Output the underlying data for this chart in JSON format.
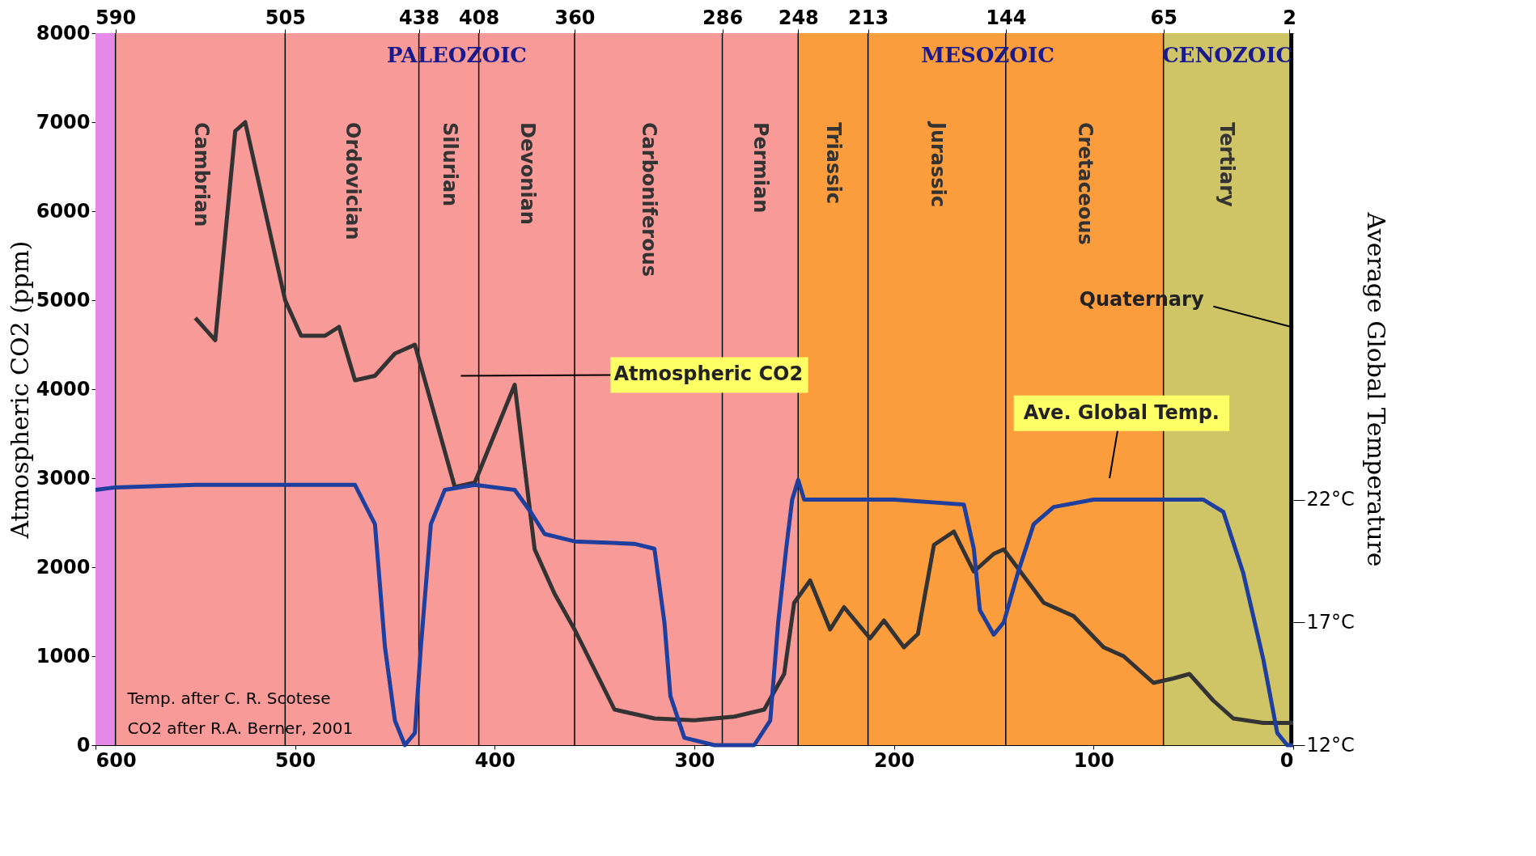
{
  "chart_data": {
    "type": "line",
    "ylabel": "Atmospheric CO2 (ppm)",
    "y2label": "Average Global Temperature",
    "xlim": [
      600,
      0
    ],
    "xticks": [
      600,
      500,
      400,
      300,
      200,
      100,
      0
    ],
    "x2lim": [
      600,
      0
    ],
    "x2ticks": [
      590,
      505,
      438,
      408,
      360,
      286,
      248,
      213,
      144,
      65,
      2
    ],
    "ylim": [
      0,
      8000
    ],
    "yticks": [
      0,
      1000,
      2000,
      3000,
      4000,
      5000,
      6000,
      7000,
      8000
    ],
    "ref_lines": [
      {
        "axis": "x",
        "value": 590
      },
      {
        "axis": "x",
        "value": 505
      },
      {
        "axis": "x",
        "value": 438
      },
      {
        "axis": "x",
        "value": 408
      },
      {
        "axis": "x",
        "value": 360
      },
      {
        "axis": "x",
        "value": 286
      },
      {
        "axis": "x",
        "value": 248
      },
      {
        "axis": "x",
        "value": 213
      },
      {
        "axis": "x",
        "value": 144
      },
      {
        "axis": "x",
        "value": 65
      }
    ],
    "y2lim": [
      12,
      41
    ],
    "y2ticks": [
      {
        "value": 12,
        "label": "12°C"
      },
      {
        "value": 17,
        "label": "17°C"
      },
      {
        "value": 22,
        "label": "22°C"
      }
    ],
    "marker": "none",
    "line_style": "solid",
    "bands": [
      {
        "axis": "x",
        "from": 600,
        "to": 590,
        "label": null,
        "color": "#e58ae8"
      },
      {
        "axis": "x",
        "from": 2,
        "to": 0,
        "label": null,
        "color": "#000000"
      },
      {
        "axis": "x",
        "from": 590,
        "to": 505,
        "label": "Cambrian",
        "color": "#f89a98"
      },
      {
        "axis": "x",
        "from": 505,
        "to": 438,
        "label": "Ordovician",
        "color": "#f89a98"
      },
      {
        "axis": "x",
        "from": 438,
        "to": 408,
        "label": "Silurian",
        "color": "#f89a98"
      },
      {
        "axis": "x",
        "from": 408,
        "to": 360,
        "label": "Devonian",
        "color": "#f89a98"
      },
      {
        "axis": "x",
        "from": 360,
        "to": 286,
        "label": "Carboniferous",
        "color": "#f89a98"
      },
      {
        "axis": "x",
        "from": 286,
        "to": 248,
        "label": "Permian",
        "color": "#f89a98"
      },
      {
        "axis": "x",
        "from": 248,
        "to": 213,
        "label": "Triassic",
        "color": "#fb9d3c"
      },
      {
        "axis": "x",
        "from": 213,
        "to": 144,
        "label": "Jurassic",
        "color": "#fb9d3c"
      },
      {
        "axis": "x",
        "from": 144,
        "to": 65,
        "label": "Cretaceous",
        "color": "#fb9d3c"
      },
      {
        "axis": "x",
        "from": 65,
        "to": 2,
        "label": "Tertiary",
        "color": "#cfc566"
      }
    ],
    "annotations": [
      "PALEOZOIC",
      "MESOZOIC",
      "CENOZOIC",
      {
        "text": "Quaternary",
        "x": 1,
        "y": 4700
      },
      "Atmospheric CO2",
      "Ave. Global Temp.",
      "Temp. after C. R. Scotese",
      "CO2 after R.A. Berner, 2001"
    ],
    "series": [
      {
        "color": "#333333",
        "x": [
          550,
          540,
          530,
          525,
          515,
          505,
          497,
          485,
          478,
          470,
          460,
          450,
          440,
          430,
          420,
          410,
          400,
          390,
          380,
          370,
          360,
          350,
          340,
          320,
          300,
          280,
          265,
          255,
          250,
          242,
          232,
          225,
          212,
          205,
          195,
          188,
          180,
          170,
          160,
          150,
          145,
          135,
          125,
          110,
          95,
          85,
          70,
          60,
          52,
          40,
          30,
          15,
          0
        ],
        "values": [
          4800,
          4550,
          6900,
          7000,
          6000,
          5000,
          4600,
          4600,
          4700,
          4100,
          4150,
          4400,
          4500,
          3700,
          2900,
          2950,
          3500,
          4050,
          2200,
          1700,
          1300,
          850,
          400,
          300,
          280,
          320,
          400,
          800,
          1600,
          1850,
          1300,
          1550,
          1200,
          1400,
          1100,
          1250,
          2250,
          2400,
          1950,
          2150,
          2200,
          1900,
          1600,
          1450,
          1100,
          1000,
          700,
          750,
          800,
          500,
          300,
          250,
          250
        ]
      },
      {
        "color": "#1e3f9e",
        "axis": "y2",
        "x": [
          600,
          590,
          550,
          500,
          470,
          460,
          455,
          450,
          445,
          440,
          437,
          432,
          425,
          410,
          390,
          382,
          375,
          360,
          330,
          320,
          315,
          312,
          305,
          290,
          270,
          262,
          258,
          254,
          251,
          248,
          245,
          240,
          200,
          165,
          160,
          157,
          150,
          145,
          138,
          130,
          120,
          100,
          60,
          45,
          35,
          25,
          15,
          8,
          3,
          0
        ],
        "values": [
          22.4,
          22.5,
          22.6,
          22.6,
          22.6,
          21,
          16,
          13,
          12,
          12.5,
          16,
          21,
          22.4,
          22.6,
          22.4,
          21.5,
          20.6,
          20.3,
          20.2,
          20,
          17,
          14,
          12.3,
          12,
          12,
          13,
          17,
          20,
          22,
          22.8,
          22,
          22,
          22,
          21.8,
          20,
          17.5,
          16.5,
          17,
          19,
          21,
          21.7,
          22,
          22,
          22,
          21.5,
          19,
          15.5,
          12.5,
          12,
          12
        ]
      }
    ]
  }
}
